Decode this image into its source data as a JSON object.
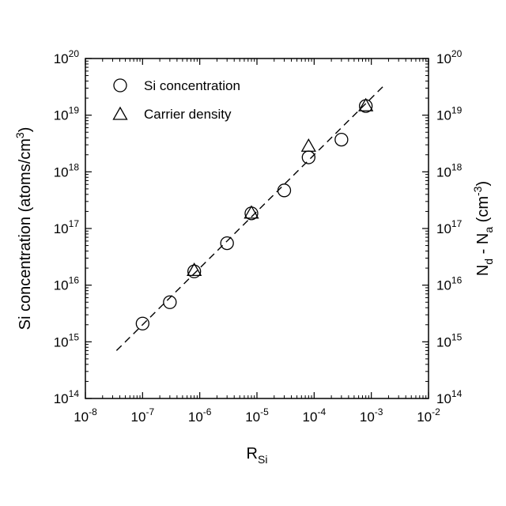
{
  "chart_data": {
    "type": "scatter",
    "x_scale": "log",
    "y_scale": "log",
    "xlim": [
      1e-08,
      0.01
    ],
    "ylim": [
      100000000000000.0,
      1e+20
    ],
    "x_tick_exponents": [
      "-8",
      "-7",
      "-6",
      "-5",
      "-4",
      "-3",
      "-2"
    ],
    "y_tick_exponents": [
      "14",
      "15",
      "16",
      "17",
      "18",
      "19",
      "20"
    ],
    "tick_base": "10",
    "xlabel": {
      "main": "R",
      "sub": "Si"
    },
    "ylabel_left": {
      "main": "Si concentration (atoms/cm",
      "sup": "3",
      "end": ")"
    },
    "ylabel_right": {
      "n": "N",
      "d": "d",
      "minus": " - N",
      "a": "a",
      "open": " (cm",
      "sup": "-3",
      "close": ")"
    },
    "legend_position": "top-left",
    "series": [
      {
        "name": "Si concentration",
        "marker": "circle",
        "points": [
          {
            "x": 1e-07,
            "y": 2100000000000000.0
          },
          {
            "x": 3e-07,
            "y": 5000000000000000.0
          },
          {
            "x": 8e-07,
            "y": 1.75e+16
          },
          {
            "x": 3e-06,
            "y": 5.5e+16
          },
          {
            "x": 8e-06,
            "y": 1.85e+17
          },
          {
            "x": 3e-05,
            "y": 4.7e+17
          },
          {
            "x": 8e-05,
            "y": 1.8e+18
          },
          {
            "x": 0.0003,
            "y": 3.7e+18
          },
          {
            "x": 0.0008,
            "y": 1.45e+19
          }
        ]
      },
      {
        "name": "Carrier density",
        "marker": "triangle",
        "points": [
          {
            "x": 8e-07,
            "y": 1.8e+16
          },
          {
            "x": 8e-06,
            "y": 1.85e+17
          },
          {
            "x": 8e-05,
            "y": 2.8e+18
          },
          {
            "x": 0.0008,
            "y": 1.45e+19
          }
        ]
      }
    ],
    "fit_line": {
      "style": "dashed",
      "x": [
        3.5e-08,
        0.0018
      ],
      "y": [
        700000000000000.0,
        3.6e+19
      ]
    }
  }
}
